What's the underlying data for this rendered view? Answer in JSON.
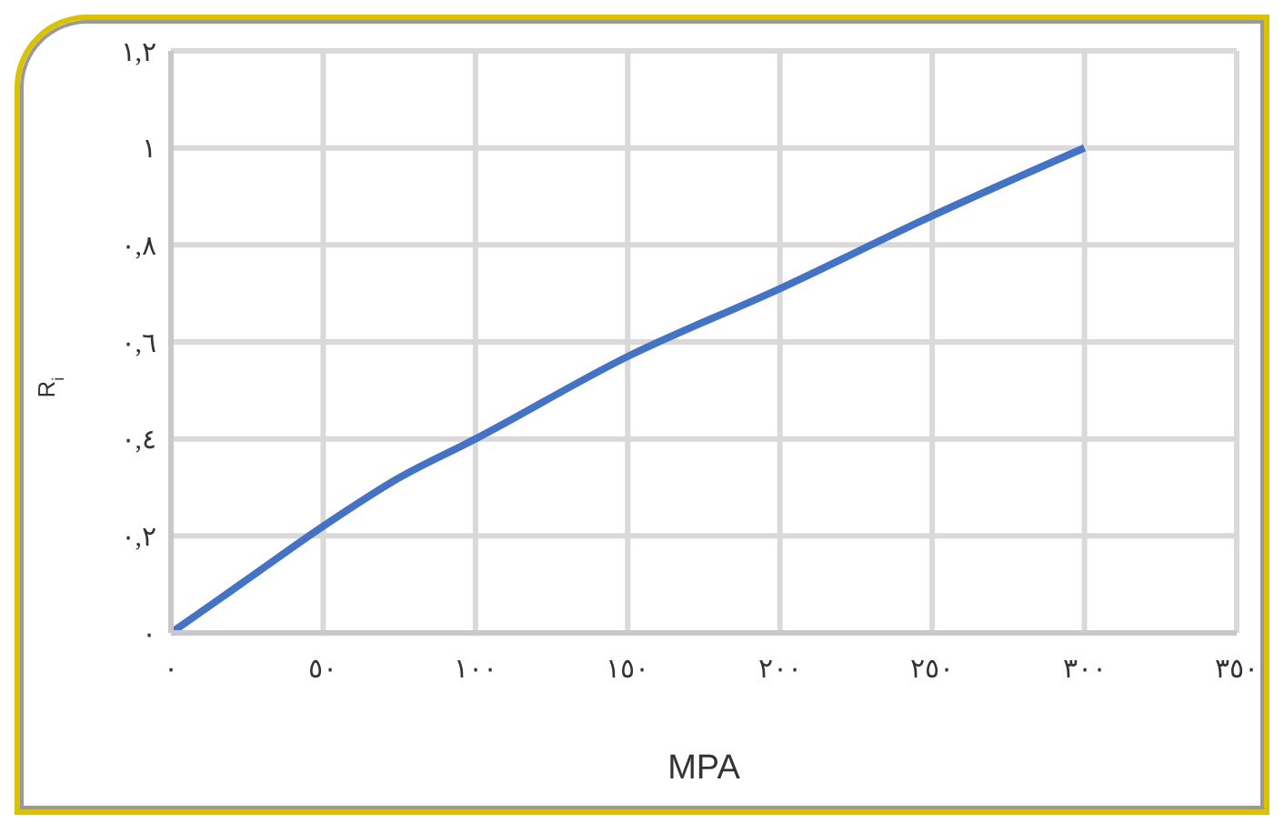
{
  "chart_data": {
    "type": "line",
    "xlabel": "MPA",
    "ylabel": "R$_{i}$",
    "x": [
      0,
      25,
      50,
      75,
      100,
      150,
      200,
      250,
      300
    ],
    "series": [
      {
        "color": "#4472c4",
        "values": [
          0,
          0.11,
          0.22,
          0.32,
          0.4,
          0.57,
          0.71,
          0.86,
          1.0
        ]
      }
    ],
    "xlim": [
      0,
      350
    ],
    "xticks": [
      {
        "value": 0,
        "label": "٠"
      },
      {
        "value": 50,
        "label": "٥٠"
      },
      {
        "value": 100,
        "label": "١٠٠"
      },
      {
        "value": 150,
        "label": "١٥٠"
      },
      {
        "value": 200,
        "label": "٢٠٠"
      },
      {
        "value": 250,
        "label": "٢٥٠"
      },
      {
        "value": 300,
        "label": "٣٠٠"
      },
      {
        "value": 350,
        "label": "٣٥٠"
      }
    ],
    "ylim": [
      0,
      1.2
    ],
    "yticks": [
      {
        "value": 0,
        "label": "٠"
      },
      {
        "value": 0.2,
        "label": "٠,٢"
      },
      {
        "value": 0.4,
        "label": "٠,٤"
      },
      {
        "value": 0.6,
        "label": "٠,٦"
      },
      {
        "value": 0.8,
        "label": "٠,٨"
      },
      {
        "value": 1,
        "label": "١"
      },
      {
        "value": 1.2,
        "label": "١,٢"
      }
    ],
    "grid": true,
    "marker": "none",
    "line_style": "solid",
    "legend": false
  }
}
